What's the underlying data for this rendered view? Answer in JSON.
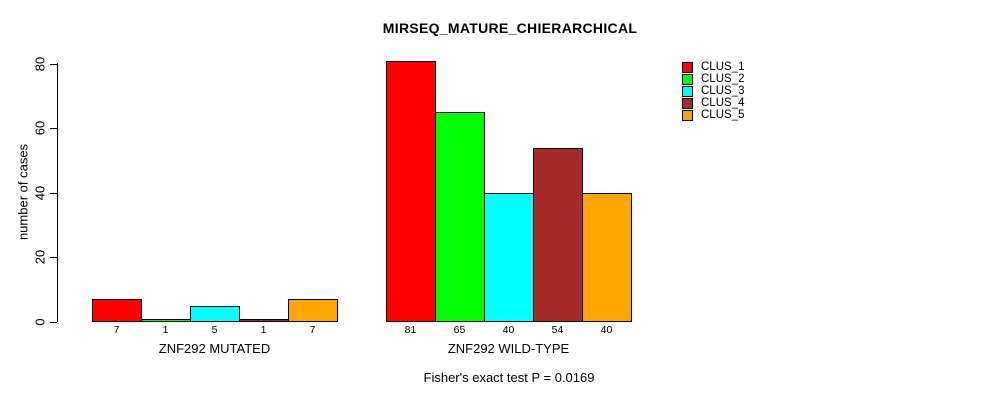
{
  "chart_data": {
    "type": "bar",
    "title": "MIRSEQ_MATURE_CHIERARCHICAL",
    "ylabel": "number of cases",
    "xlabel": "",
    "ylim": [
      0,
      81
    ],
    "yticks": [
      0,
      20,
      40,
      60,
      80
    ],
    "grid": false,
    "legend_position": "top-right",
    "bar_value_labels": true,
    "categories": [
      "ZNF292 MUTATED",
      "ZNF292 WILD-TYPE"
    ],
    "series": [
      {
        "name": "CLUS_1",
        "color": "#FF0000",
        "values": [
          7,
          81
        ]
      },
      {
        "name": "CLUS_2",
        "color": "#00FF00",
        "values": [
          1,
          65
        ]
      },
      {
        "name": "CLUS_3",
        "color": "#00FFFF",
        "values": [
          5,
          40
        ]
      },
      {
        "name": "CLUS_4",
        "color": "#A52A2A",
        "values": [
          1,
          54
        ]
      },
      {
        "name": "CLUS_5",
        "color": "#FFA500",
        "values": [
          7,
          40
        ]
      }
    ],
    "annotation": "Fisher's exact test P = 0.0169"
  }
}
